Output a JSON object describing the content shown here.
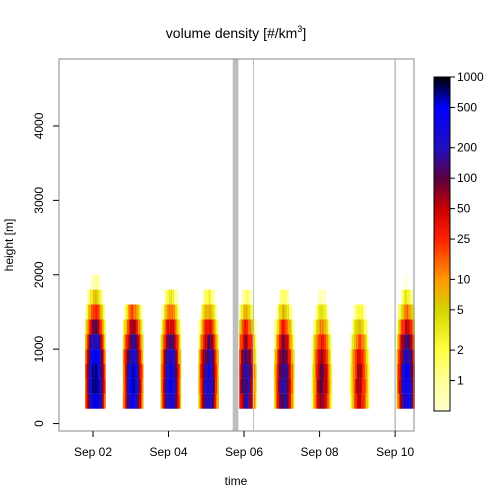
{
  "chart_data": {
    "type": "heatmap",
    "title_main": "volume density [#/km",
    "title_sup": "3",
    "title_end": "]",
    "xlabel": "time",
    "ylabel": "height [m]",
    "x_unit": "days (September)",
    "xlim": [
      1.1,
      10.5
    ],
    "ylim": [
      -100,
      4900
    ],
    "x_ticks": [
      {
        "value": 2,
        "label": "Sep 02"
      },
      {
        "value": 4,
        "label": "Sep 04"
      },
      {
        "value": 6,
        "label": "Sep 06"
      },
      {
        "value": 8,
        "label": "Sep 08"
      },
      {
        "value": 10,
        "label": "Sep 10"
      }
    ],
    "y_ticks": [
      0,
      1000,
      2000,
      3000,
      4000
    ],
    "height_bins_m": [
      300,
      500,
      700,
      900,
      1100,
      1300,
      1500,
      1700,
      1900,
      2100,
      2300,
      2500
    ],
    "color_scale": {
      "type": "log",
      "range": [
        0.5,
        1000
      ],
      "ticks": [
        1,
        2,
        5,
        10,
        25,
        50,
        100,
        200,
        500,
        1000
      ],
      "stops": [
        {
          "value": 0.5,
          "color": "#ffffcc"
        },
        {
          "value": 1,
          "color": "#ffff99"
        },
        {
          "value": 2,
          "color": "#ffff40"
        },
        {
          "value": 5,
          "color": "#d4d400"
        },
        {
          "value": 10,
          "color": "#ff9900"
        },
        {
          "value": 25,
          "color": "#ff2000"
        },
        {
          "value": 50,
          "color": "#c80000"
        },
        {
          "value": 100,
          "color": "#5a0040"
        },
        {
          "value": 200,
          "color": "#2010c0"
        },
        {
          "value": 500,
          "color": "#0000ff"
        },
        {
          "value": 1000,
          "color": "#000000"
        }
      ]
    },
    "nights": [
      {
        "center": 2.05,
        "peak": 800,
        "top": 2500
      },
      {
        "center": 3.05,
        "peak": 500,
        "top": 1500
      },
      {
        "center": 4.05,
        "peak": 400,
        "top": 1800
      },
      {
        "center": 5.05,
        "peak": 300,
        "top": 1800
      },
      {
        "center": 6.05,
        "peak": 200,
        "top": 2500
      },
      {
        "center": 7.05,
        "peak": 200,
        "top": 2500
      },
      {
        "center": 8.05,
        "peak": 100,
        "top": 1900
      },
      {
        "center": 9.05,
        "peak": 60,
        "top": 1500
      },
      {
        "center": 10.3,
        "peak": 400,
        "top": 1900
      }
    ],
    "missing_data": [
      {
        "from": 5.7,
        "to": 5.85
      },
      {
        "from": 9.98,
        "to": 10.02
      }
    ],
    "markers": [
      6.25
    ],
    "colorbar_visible": true
  }
}
